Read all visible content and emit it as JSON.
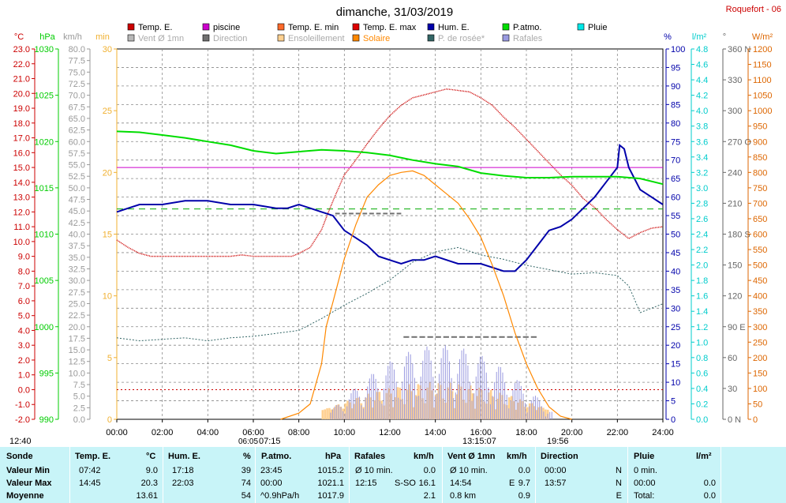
{
  "page": {
    "title": "dimanche, 31/03/2019",
    "location": "Roquefort - 06"
  },
  "legend": [
    {
      "label": "Temp. E.",
      "color": "#cc0000"
    },
    {
      "label": "piscine",
      "color": "#cc00cc"
    },
    {
      "label": "Temp. E. min",
      "color": "#ff6a2a"
    },
    {
      "label": "Temp. E. max",
      "color": "#dd0000"
    },
    {
      "label": "Hum. E.",
      "color": "#0000aa"
    },
    {
      "label": "P.atmo.",
      "color": "#00dd00"
    },
    {
      "label": "Pluie",
      "color": "#00e8e8"
    },
    {
      "label": "Vent Ø 1mn",
      "color": "#b8b8b8"
    },
    {
      "label": "Direction",
      "color": "#707070"
    },
    {
      "label": "Ensoleillement",
      "color": "#ffd090"
    },
    {
      "label": "Solaire",
      "color": "#ff8800"
    },
    {
      "label": "P. de rosée*",
      "color": "#336666"
    },
    {
      "label": "Rafales",
      "color": "#9a9ae0"
    }
  ],
  "axes": {
    "temp": {
      "unit": "°C",
      "ticks": [
        "23.0",
        "22.0",
        "21.0",
        "20.0",
        "19.0",
        "18.0",
        "17.0",
        "16.0",
        "15.0",
        "14.0",
        "13.0",
        "12.0",
        "11.0",
        "10.0",
        "9.0",
        "8.0",
        "7.0",
        "6.0",
        "5.0",
        "4.0",
        "3.0",
        "2.0",
        "1.0",
        "0.0",
        "-1.0",
        "-2.0"
      ],
      "color": "#cc0000"
    },
    "press": {
      "unit": "hPa",
      "ticks": [
        "1030",
        "1025",
        "1020",
        "1015",
        "1010",
        "1005",
        "1000",
        "995",
        "990"
      ],
      "color": "#00cc00"
    },
    "wind": {
      "unit": "km/h",
      "ticks": [
        "80.0",
        "77.5",
        "75.0",
        "72.5",
        "70.0",
        "67.5",
        "65.0",
        "62.5",
        "60.0",
        "57.5",
        "55.0",
        "52.5",
        "50.0",
        "47.5",
        "45.0",
        "42.5",
        "40.0",
        "37.5",
        "35.0",
        "32.5",
        "30.0",
        "27.5",
        "25.0",
        "22.5",
        "20.0",
        "17.5",
        "15.0",
        "12.5",
        "10.0",
        "7.5",
        "5.0",
        "2.5",
        "0.0"
      ],
      "color": "#999999"
    },
    "sunmin": {
      "unit": "min",
      "ticks": [
        "30",
        "25",
        "20",
        "15",
        "10",
        "5",
        "0"
      ],
      "color": "#f0b030"
    },
    "hum": {
      "unit": "%",
      "ticks": [
        "100",
        "95",
        "90",
        "85",
        "80",
        "75",
        "70",
        "65",
        "60",
        "55",
        "50",
        "45",
        "40",
        "35",
        "30",
        "25",
        "20",
        "15",
        "10",
        "5",
        "0"
      ],
      "color": "#0000aa"
    },
    "rain": {
      "unit": "l/m²",
      "ticks": [
        "4.8",
        "4.6",
        "4.4",
        "4.2",
        "4.0",
        "3.8",
        "3.6",
        "3.4",
        "3.2",
        "3.0",
        "2.8",
        "2.6",
        "2.4",
        "2.2",
        "2.0",
        "1.8",
        "1.6",
        "1.4",
        "1.2",
        "1.0",
        "0.8",
        "0.6",
        "0.4",
        "0.2",
        "0.0"
      ],
      "color": "#00cccc"
    },
    "dir": {
      "unit": "°",
      "ticks": [
        "360 N",
        "330",
        "300",
        "270 O",
        "240",
        "210",
        "180 S",
        "150",
        "120",
        "90 E",
        "60",
        "30",
        "0 N"
      ],
      "color": "#666666"
    },
    "solar": {
      "unit": "W/m²",
      "ticks": [
        "1200",
        "1150",
        "1100",
        "1050",
        "1000",
        "950",
        "900",
        "850",
        "800",
        "750",
        "700",
        "650",
        "600",
        "550",
        "500",
        "450",
        "400",
        "350",
        "300",
        "250",
        "200",
        "150",
        "100",
        "50",
        "0"
      ],
      "color": "#dd6600"
    },
    "time": {
      "ticks": [
        "00:00",
        "02:00",
        "04:00",
        "06:00",
        "08:00",
        "10:00",
        "12:00",
        "14:00",
        "16:00",
        "18:00",
        "20:00",
        "22:00",
        "24:00"
      ]
    }
  },
  "sun_marks": {
    "noon_sun": "12:40",
    "sunrise": "07:15",
    "sunrise_prefix": "06:05",
    "solar_noon": "13:15:07",
    "sunset": "19:56"
  },
  "chart_data": {
    "type": "line",
    "x_unit": "hours",
    "xlim": [
      0,
      24
    ],
    "series": [
      {
        "name": "Temp. E.",
        "unit": "°C",
        "ylim": [
          -2,
          23
        ],
        "x": [
          0,
          0.5,
          1,
          1.5,
          2,
          3,
          4,
          5,
          5.5,
          6,
          6.5,
          7,
          7.5,
          7.7,
          8,
          8.5,
          9,
          9.3,
          9.6,
          10,
          10.5,
          11,
          11.5,
          12,
          12.5,
          13,
          13.5,
          14,
          14.5,
          15,
          15.5,
          16,
          16.5,
          17,
          17.5,
          18,
          18.5,
          19,
          19.5,
          20,
          20.5,
          21,
          21.5,
          22,
          22.5,
          23,
          23.5,
          24
        ],
        "y": [
          10.1,
          9.6,
          9.2,
          9.0,
          9.0,
          9.0,
          9.0,
          9.0,
          9.1,
          9.0,
          9.0,
          9.0,
          9.0,
          9.0,
          9.2,
          9.6,
          10.8,
          12.0,
          13.1,
          14.5,
          15.5,
          16.6,
          17.6,
          18.5,
          19.2,
          19.7,
          19.9,
          20.1,
          20.3,
          20.2,
          20.1,
          19.7,
          19.2,
          18.4,
          17.7,
          16.9,
          16.1,
          15.3,
          14.5,
          13.8,
          12.9,
          12.3,
          11.5,
          10.8,
          10.2,
          10.6,
          10.9,
          11.0
        ]
      },
      {
        "name": "piscine",
        "unit": "°C",
        "ylim": [
          -2,
          23
        ],
        "x": [
          0,
          24
        ],
        "y": [
          15.0,
          15.0
        ]
      },
      {
        "name": "Hum. E.",
        "unit": "%",
        "ylim": [
          0,
          100
        ],
        "x": [
          0,
          0.5,
          1,
          2,
          3,
          3.5,
          4,
          5,
          6,
          7,
          7.5,
          8,
          8.5,
          9,
          9.5,
          10,
          10.5,
          11,
          11.5,
          12,
          12.5,
          13,
          13.5,
          14,
          14.5,
          15,
          15.5,
          16,
          16.5,
          17,
          17.5,
          18,
          18.5,
          19,
          19.5,
          20,
          20.5,
          21,
          21.5,
          22,
          22.1,
          22.3,
          22.5,
          23,
          23.5,
          24
        ],
        "y": [
          56,
          57,
          58,
          58,
          59,
          59,
          59,
          58,
          58,
          57,
          57,
          58,
          57,
          56,
          55,
          51,
          49,
          47,
          44,
          43,
          42,
          43,
          43,
          44,
          43,
          42,
          42,
          42,
          41,
          40,
          40,
          43,
          47,
          51,
          52,
          54,
          57,
          60,
          64,
          68,
          74,
          73,
          68,
          62,
          60,
          58
        ]
      },
      {
        "name": "P.atmo.",
        "unit": "hPa",
        "ylim": [
          990,
          1030
        ],
        "x": [
          0,
          1,
          2,
          3,
          4,
          5,
          6,
          7,
          8,
          9,
          10,
          11,
          12,
          13,
          14,
          15,
          16,
          17,
          18,
          19,
          20,
          21,
          22,
          23,
          24
        ],
        "y": [
          1021.1,
          1021.0,
          1020.7,
          1020.4,
          1020.0,
          1019.6,
          1019.0,
          1018.7,
          1018.9,
          1019.1,
          1019.0,
          1018.8,
          1018.5,
          1018.0,
          1017.6,
          1017.3,
          1016.6,
          1016.3,
          1016.1,
          1016.1,
          1016.2,
          1016.2,
          1016.2,
          1016.0,
          1015.4
        ]
      },
      {
        "name": "Solaire",
        "unit": "W/m²",
        "ylim": [
          0,
          1200
        ],
        "x": [
          7.2,
          8,
          8.5,
          9,
          9.2,
          9.5,
          10,
          10.5,
          11,
          11.5,
          12,
          12.5,
          13,
          13.5,
          14,
          14.5,
          15,
          15.5,
          16,
          16.5,
          17,
          17.5,
          18,
          18.5,
          19,
          19.5,
          20
        ],
        "y": [
          0,
          20,
          50,
          180,
          300,
          380,
          520,
          630,
          720,
          760,
          790,
          800,
          805,
          790,
          760,
          730,
          700,
          650,
          590,
          500,
          400,
          280,
          180,
          100,
          40,
          10,
          0
        ]
      },
      {
        "name": "P. de rosée*",
        "unit": "°C",
        "ylim": [
          -2,
          23
        ],
        "x": [
          0,
          1,
          2,
          3,
          4,
          5,
          6,
          7,
          8,
          9,
          10,
          11,
          12,
          13,
          14,
          15,
          16,
          17,
          18,
          19,
          20,
          21,
          22,
          22.5,
          23,
          24
        ],
        "y": [
          3.5,
          3.3,
          3.4,
          3.5,
          3.3,
          3.5,
          3.6,
          3.8,
          4.0,
          4.8,
          5.7,
          6.5,
          7.4,
          8.6,
          9.3,
          9.6,
          9.1,
          8.8,
          8.4,
          8.1,
          7.8,
          7.9,
          7.7,
          7.0,
          5.2,
          5.8
        ]
      }
    ]
  },
  "stats": {
    "headers": {
      "sonde": "Sonde",
      "temp": "Temp. E.",
      "temp_unit": "°C",
      "hum": "Hum. E.",
      "hum_unit": "%",
      "press": "P.atmo.",
      "press_unit": "hPa",
      "gust": "Rafales",
      "gust_unit": "km/h",
      "wind": "Vent Ø 1mn",
      "wind_unit": "km/h",
      "dir": "Direction",
      "rain": "Pluie",
      "rain_unit": "l/m²"
    },
    "rows": [
      {
        "label": "Valeur Min",
        "t_time": "07:42",
        "t_val": "9.0",
        "h_time": "17:18",
        "h_val": "39",
        "p_time": "23:45",
        "p_val": "1015.2",
        "g_time": "Ø 10 min.",
        "g_val": "0.0",
        "w_time": "Ø 10 min.",
        "w_val": "0.0",
        "d_time": "00:00",
        "d_val": "N",
        "r_time": "0 min.",
        "r_val": ""
      },
      {
        "label": "Valeur Max",
        "t_time": "14:45",
        "t_val": "20.3",
        "h_time": "22:03",
        "h_val": "74",
        "p_time": "00:00",
        "p_val": "1021.1",
        "g_time": "12:15",
        "g_dir": "S-SO",
        "g_val": "16.1",
        "w_time": "14:54",
        "w_dir": "E",
        "w_val": "9.7",
        "d_time": "13:57",
        "d_val": "N",
        "r_time": "00:00",
        "r_val": "0.0"
      },
      {
        "label": "Moyenne",
        "t_time": "",
        "t_val": "13.61",
        "h_time": "",
        "h_val": "54",
        "p_time": "^0.9hPa/h",
        "p_val": "1017.9",
        "g_time": "",
        "g_val": "2.1",
        "w_time": "0.8 km",
        "w_val": "0.9",
        "d_time": "",
        "d_val": "E",
        "r_time": "Total:",
        "r_val": "0.0"
      }
    ]
  }
}
